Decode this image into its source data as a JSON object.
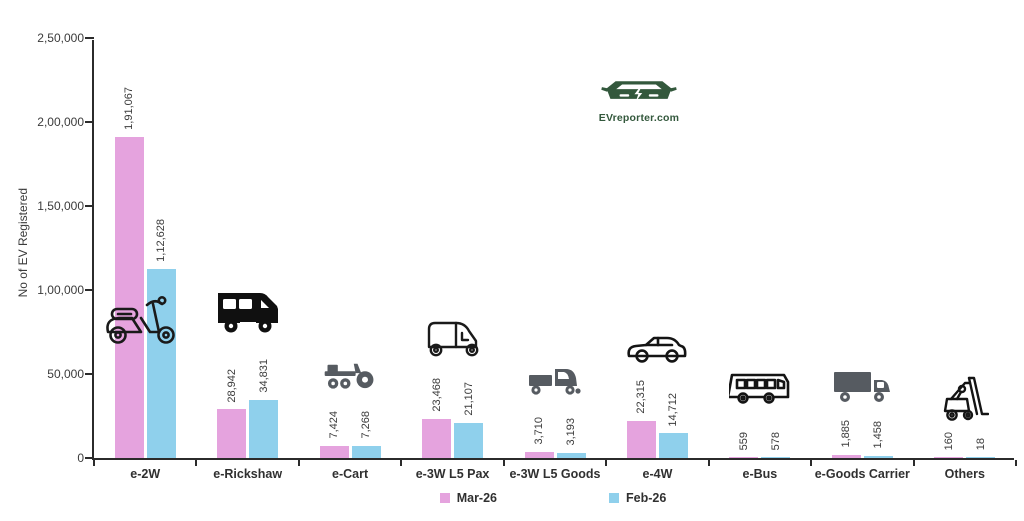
{
  "chart_data": {
    "type": "bar",
    "title": "",
    "ylabel": "No of EV Registered",
    "xlabel": "",
    "ylim": [
      0,
      250000
    ],
    "grid": false,
    "legend_position": "bottom",
    "ytick_values": [
      0,
      50000,
      100000,
      150000,
      200000,
      250000
    ],
    "ytick_labels": [
      "0",
      "50,000",
      "1,00,000",
      "1,50,000",
      "2,00,000",
      "2,50,000"
    ],
    "categories": [
      "e-2W",
      "e-Rickshaw",
      "e-Cart",
      "e-3W L5 Pax",
      "e-3W L5 Goods",
      "e-4W",
      "e-Bus",
      "e-Goods Carrier",
      "Others"
    ],
    "icons": [
      "scooter-icon",
      "rickshaw-icon",
      "cart-icon",
      "auto-rickshaw-icon",
      "goods-3w-icon",
      "car-icon",
      "bus-icon",
      "truck-icon",
      "forklift-icon"
    ],
    "series": [
      {
        "name": "Mar-26",
        "color": "#e5a3de",
        "values": [
          191067,
          28942,
          7424,
          23468,
          3710,
          22315,
          559,
          1885,
          160
        ],
        "labels": [
          "1,91,067",
          "28,942",
          "7,424",
          "23,468",
          "3,710",
          "22,315",
          "559",
          "1,885",
          "160"
        ]
      },
      {
        "name": "Feb-26",
        "color": "#8fd0ec",
        "values": [
          112628,
          34831,
          7268,
          21107,
          3193,
          14712,
          578,
          1458,
          18
        ],
        "labels": [
          "1,12,628",
          "34,831",
          "7,268",
          "21,107",
          "3,193",
          "14,712",
          "578",
          "1,458",
          "18"
        ]
      }
    ]
  },
  "legend": {
    "items": [
      {
        "label": "Mar-26",
        "color": "#e5a3de"
      },
      {
        "label": "Feb-26",
        "color": "#8fd0ec"
      }
    ]
  },
  "branding": {
    "logo_text": "EVreporter.com",
    "logo_color": "#33583c"
  }
}
